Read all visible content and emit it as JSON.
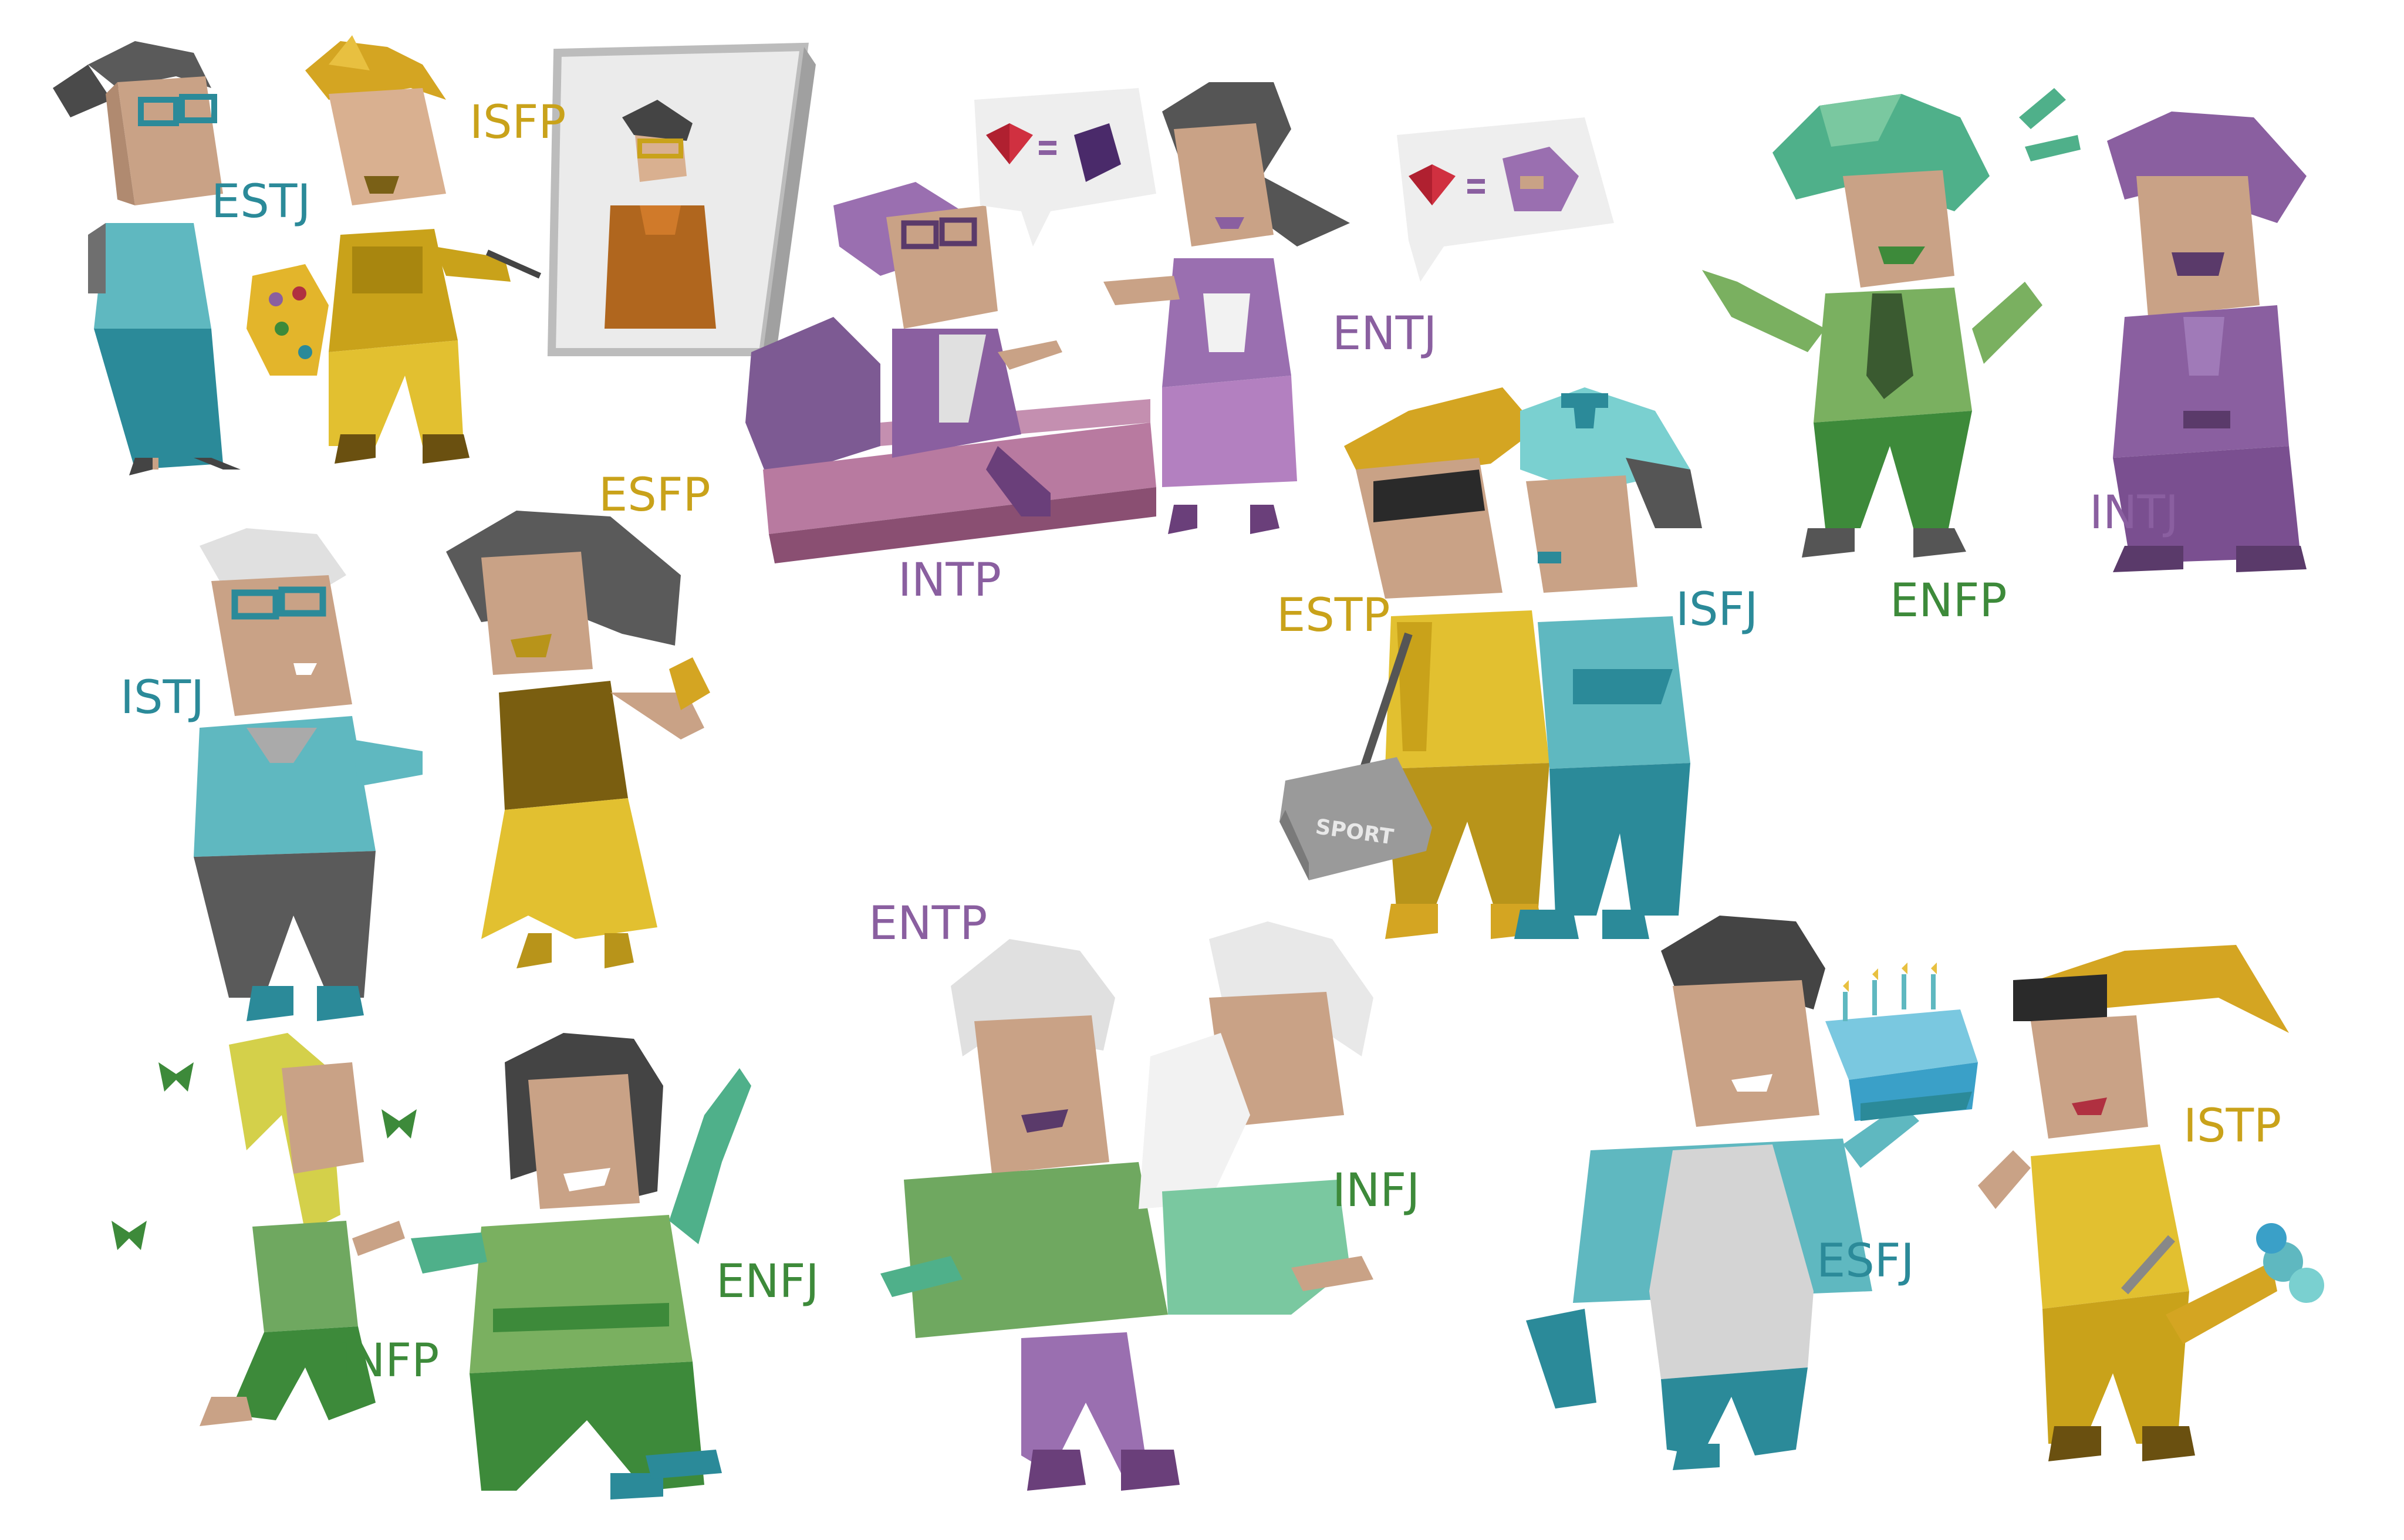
{
  "colors": {
    "analyst_purple": "#8a5fa0",
    "diplomat_green": "#3d8a3a",
    "sentinel_teal": "#2b8a99",
    "explorer_gold": "#c9a21a"
  },
  "types": {
    "ESTJ": {
      "label": "ESTJ",
      "color": "#2b8a99"
    },
    "ISFP": {
      "label": "ISFP",
      "color": "#c9a21a"
    },
    "INTP": {
      "label": "INTP",
      "color": "#8a5fa0"
    },
    "ENTJ": {
      "label": "ENTJ",
      "color": "#8a5fa0"
    },
    "ENFP": {
      "label": "ENFP",
      "color": "#3d8a3a"
    },
    "INTJ": {
      "label": "INTJ",
      "color": "#8a5fa0"
    },
    "ESFP": {
      "label": "ESFP",
      "color": "#c9a21a"
    },
    "ISTJ": {
      "label": "ISTJ",
      "color": "#2b8a99"
    },
    "ESTP": {
      "label": "ESTP",
      "color": "#c9a21a"
    },
    "ISFJ": {
      "label": "ISFJ",
      "color": "#2b8a99"
    },
    "ENTP": {
      "label": "ENTP",
      "color": "#8a5fa0"
    },
    "INFJ": {
      "label": "INFJ",
      "color": "#3d8a3a"
    },
    "ESFJ": {
      "label": "ESFJ",
      "color": "#2b8a99"
    },
    "ISTP": {
      "label": "ISTP",
      "color": "#c9a21a"
    },
    "INFP": {
      "label": "INFP",
      "color": "#3d8a3a"
    },
    "ENFJ": {
      "label": "ENFJ",
      "color": "#3d8a3a"
    }
  },
  "props": {
    "sport_bag_text": "SPORT"
  }
}
